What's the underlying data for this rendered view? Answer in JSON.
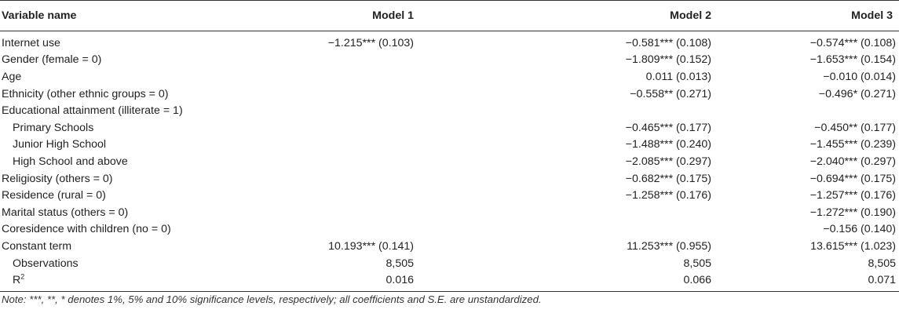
{
  "table": {
    "headers": [
      "Variable name",
      "Model 1",
      "Model 2",
      "Model 3"
    ],
    "rows": [
      {
        "label": "Internet use",
        "indent": false,
        "m1": "−1.215*** (0.103)",
        "m2": "−0.581*** (0.108)",
        "m3": "−0.574*** (0.108)"
      },
      {
        "label": "Gender (female = 0)",
        "indent": false,
        "m1": "",
        "m2": "−1.809*** (0.152)",
        "m3": "−1.653*** (0.154)"
      },
      {
        "label": "Age",
        "indent": false,
        "m1": "",
        "m2": "0.011 (0.013)",
        "m3": "−0.010 (0.014)"
      },
      {
        "label": "Ethnicity (other ethnic groups = 0)",
        "indent": false,
        "m1": "",
        "m2": "−0.558** (0.271)",
        "m3": "−0.496* (0.271)"
      },
      {
        "label": "Educational attainment (illiterate = 1)",
        "indent": false,
        "m1": "",
        "m2": "",
        "m3": ""
      },
      {
        "label": "Primary Schools",
        "indent": true,
        "m1": "",
        "m2": "−0.465*** (0.177)",
        "m3": "−0.450** (0.177)"
      },
      {
        "label": "Junior High School",
        "indent": true,
        "m1": "",
        "m2": "−1.488*** (0.240)",
        "m3": "−1.455*** (0.239)"
      },
      {
        "label": "High School and above",
        "indent": true,
        "m1": "",
        "m2": "−2.085*** (0.297)",
        "m3": "−2.040*** (0.297)"
      },
      {
        "label": "Religiosity (others = 0)",
        "indent": false,
        "m1": "",
        "m2": "−0.682*** (0.175)",
        "m3": "−0.694*** (0.175)"
      },
      {
        "label": "Residence (rural = 0)",
        "indent": false,
        "m1": "",
        "m2": "−1.258*** (0.176)",
        "m3": "−1.257*** (0.176)"
      },
      {
        "label": "Marital status (others = 0)",
        "indent": false,
        "m1": "",
        "m2": "",
        "m3": "−1.272*** (0.190)"
      },
      {
        "label": "Coresidence with children (no = 0)",
        "indent": false,
        "m1": "",
        "m2": "",
        "m3": "−0.156 (0.140)"
      },
      {
        "label": "Constant term",
        "indent": false,
        "m1": "10.193*** (0.141)",
        "m2": "11.253*** (0.955)",
        "m3": "13.615*** (1.023)"
      },
      {
        "label": "Observations",
        "indent": true,
        "m1": "8,505",
        "m2": "8,505",
        "m3": "8,505"
      },
      {
        "label": "R",
        "sup": "2",
        "indent": true,
        "m1": "0.016",
        "m2": "0.066",
        "m3": "0.071"
      }
    ]
  },
  "note": "Note: ***, **, * denotes 1%, 5% and 10% significance levels, respectively; all coefficients and S.E. are unstandardized."
}
